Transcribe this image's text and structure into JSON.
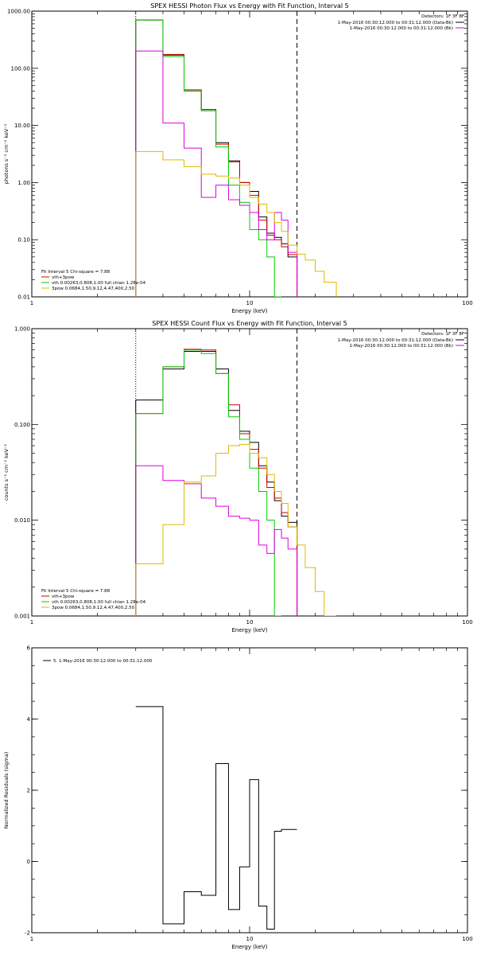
{
  "chart_data": [
    {
      "type": "line",
      "title": "SPEX HESSI Photon Flux vs Energy with Fit Function, Interval 5",
      "xlabel": "Energy (keV)",
      "ylabel": "photons s⁻¹ cm⁻² keV⁻¹",
      "xlog": true,
      "ylog": true,
      "xlim": [
        1,
        100
      ],
      "ylim": [
        0.01,
        1000
      ],
      "xticks": [
        {
          "v": 1,
          "label": "1"
        },
        {
          "v": 10,
          "label": "10"
        },
        {
          "v": 100,
          "label": "100"
        }
      ],
      "yticks": [
        {
          "v": 0.01,
          "label": "0.01"
        },
        {
          "v": 0.1,
          "label": "0.10"
        },
        {
          "v": 1,
          "label": "1.00"
        },
        {
          "v": 10,
          "label": "10.00"
        },
        {
          "v": 100,
          "label": "100.00"
        },
        {
          "v": 1000,
          "label": "1000.00"
        }
      ],
      "vlines": [
        {
          "x": 3.0,
          "style": "dotted",
          "color": "#000000"
        },
        {
          "x": 16.5,
          "style": "dashed",
          "color": "#000000"
        }
      ],
      "edges": [
        3.0,
        4.0,
        5.0,
        6.0,
        7.0,
        8.0,
        9.0,
        10.0,
        11.0,
        12.0,
        13.0,
        14.0,
        15.0,
        16.5,
        18.0,
        20.0,
        22.0,
        25.0
      ],
      "series": [
        {
          "color": "#000000",
          "values": [
            700,
            170,
            40,
            19,
            5.0,
            2.4,
            1.0,
            0.7,
            0.25,
            0.13,
            0.11,
            0.085,
            0.05,
            null,
            null,
            null,
            null
          ]
        },
        {
          "color": "#cc0000",
          "values": [
            700,
            175,
            42,
            19,
            4.7,
            2.3,
            1.0,
            0.6,
            0.22,
            0.12,
            0.1,
            0.075,
            0.055,
            null,
            null,
            null,
            null
          ]
        },
        {
          "color": "#00cc00",
          "values": [
            700,
            160,
            40,
            18,
            4.2,
            0.9,
            0.45,
            0.15,
            0.1,
            0.05,
            0.01,
            null,
            null,
            null,
            null,
            null,
            null
          ]
        },
        {
          "color": "#dd00dd",
          "values": [
            200,
            11,
            4.0,
            0.55,
            0.9,
            0.5,
            0.4,
            0.3,
            0.15,
            0.1,
            0.3,
            0.22,
            0.06,
            null,
            null,
            null,
            null
          ]
        },
        {
          "color": "#ddbb00",
          "values": [
            3.5,
            2.5,
            1.9,
            1.4,
            1.3,
            1.2,
            0.9,
            0.55,
            0.42,
            0.3,
            0.2,
            0.14,
            0.08,
            0.056,
            0.044,
            0.028,
            0.018
          ]
        }
      ],
      "header": {
        "detectors": "Detectors: 1F 3F 8F",
        "lines": [
          {
            "text": "1-May-2016 00:30:12.000 to 00:31:12.000 (Data-Bk)",
            "color": "#000000"
          },
          {
            "text": "1-May-2016 00:30:12.000 to 00:31:12.000 (Bk)",
            "color": "#dd00dd"
          }
        ]
      },
      "legend": {
        "title": "Fit Interval 5   Chi-square = 7.88",
        "items": [
          {
            "text": "vth+3pow",
            "color": "#cc0000"
          },
          {
            "text": "vth 0.00263,0.808,1.00  full chian 1.28e-04",
            "color": "#00cc00"
          },
          {
            "text": "3pow 0.0684,1.50,9.12,4.47,400,2.50",
            "color": "#ddbb00"
          }
        ]
      }
    },
    {
      "type": "line",
      "title": "SPEX HESSI Count Flux vs Energy with Fit Function, Interval 5",
      "xlabel": "Energy (keV)",
      "ylabel": "counts s⁻¹ cm⁻² keV⁻¹",
      "xlog": true,
      "ylog": true,
      "xlim": [
        1,
        100
      ],
      "ylim": [
        0.001,
        1
      ],
      "xticks": [
        {
          "v": 1,
          "label": "1"
        },
        {
          "v": 10,
          "label": "10"
        },
        {
          "v": 100,
          "label": "100"
        }
      ],
      "yticks": [
        {
          "v": 0.001,
          "label": "0.001"
        },
        {
          "v": 0.01,
          "label": "0.010"
        },
        {
          "v": 0.1,
          "label": "0.100"
        },
        {
          "v": 1,
          "label": "1.000"
        }
      ],
      "vlines": [
        {
          "x": 3.0,
          "style": "dotted",
          "color": "#000000"
        },
        {
          "x": 16.5,
          "style": "dashed",
          "color": "#000000"
        }
      ],
      "edges": [
        3.0,
        4.0,
        5.0,
        6.0,
        7.0,
        8.0,
        9.0,
        10.0,
        11.0,
        12.0,
        13.0,
        14.0,
        15.0,
        16.5,
        18.0,
        20.0,
        22.0,
        25.0
      ],
      "series": [
        {
          "color": "#000000",
          "values": [
            0.18,
            0.38,
            0.58,
            0.58,
            0.38,
            0.14,
            0.085,
            0.065,
            0.037,
            0.025,
            0.016,
            0.011,
            0.0095,
            null,
            null,
            null,
            null
          ]
        },
        {
          "color": "#cc0000",
          "values": [
            0.13,
            0.4,
            0.61,
            0.6,
            0.34,
            0.16,
            0.08,
            0.055,
            0.035,
            0.022,
            0.017,
            0.012,
            0.0085,
            null,
            null,
            null,
            null
          ]
        },
        {
          "color": "#00cc00",
          "values": [
            0.13,
            0.4,
            0.6,
            0.55,
            0.34,
            0.12,
            0.07,
            0.035,
            0.02,
            0.01,
            0.001,
            null,
            null,
            null,
            null,
            null,
            null
          ]
        },
        {
          "color": "#dd00dd",
          "values": [
            0.037,
            0.026,
            0.024,
            0.017,
            0.014,
            0.011,
            0.0105,
            0.01,
            0.0055,
            0.0045,
            0.008,
            0.0065,
            0.005,
            null,
            null,
            null,
            null
          ]
        },
        {
          "color": "#ddbb00",
          "values": [
            0.0035,
            0.009,
            0.025,
            0.029,
            0.05,
            0.06,
            0.062,
            0.05,
            0.045,
            0.03,
            0.02,
            0.015,
            0.0085,
            0.0055,
            0.0032,
            0.0018,
            0.001
          ]
        }
      ],
      "header": {
        "detectors": "Detectors: 1F 3F 8F",
        "lines": [
          {
            "text": "1-May-2016 00:30:12.000 to 00:31:12.000 (Data-Bk)",
            "color": "#000000"
          },
          {
            "text": "1-May-2016 00:30:12.000 to 00:31:12.000 (Bk)",
            "color": "#dd00dd"
          }
        ]
      },
      "legend": {
        "title": "Fit Interval 5   Chi-square = 7.88",
        "items": [
          {
            "text": "vth+3pow",
            "color": "#cc0000"
          },
          {
            "text": "vth 0.00263,0.808,1.00  full chian 1.28e-04",
            "color": "#00cc00"
          },
          {
            "text": "3pow 0.0684,1.50,9.12,4.47,400,2.50",
            "color": "#ddbb00"
          }
        ]
      }
    },
    {
      "type": "line",
      "title": "",
      "xlabel": "Energy (keV)",
      "ylabel": "Normalized Residuals (sigma)",
      "xlog": true,
      "ylog": false,
      "xlim": [
        1,
        100
      ],
      "ylim": [
        -2,
        6
      ],
      "xticks": [
        {
          "v": 1,
          "label": "1"
        },
        {
          "v": 10,
          "label": "10"
        },
        {
          "v": 100,
          "label": "100"
        }
      ],
      "yticks": [
        {
          "v": -2,
          "label": "-2"
        },
        {
          "v": 0,
          "label": "0"
        },
        {
          "v": 2,
          "label": "2"
        },
        {
          "v": 4,
          "label": "4"
        },
        {
          "v": 6,
          "label": "6"
        }
      ],
      "vlines": [],
      "edges": [
        3.0,
        4.0,
        5.0,
        6.0,
        7.0,
        8.0,
        9.0,
        10.0,
        11.0,
        12.0,
        13.0,
        14.0,
        15.0,
        16.5
      ],
      "series": [
        {
          "color": "#000000",
          "values": [
            4.35,
            -1.75,
            -0.85,
            -0.95,
            2.75,
            -1.35,
            -0.15,
            2.3,
            -1.25,
            -1.9,
            0.85,
            0.9,
            0.9
          ]
        }
      ],
      "header": {
        "detectors": "",
        "lines": []
      },
      "legend": {
        "title": "",
        "items": [
          {
            "text": "5.  1-May-2016 00:30:12.000 to 00:31:12.000",
            "color": "#000000"
          }
        ]
      }
    }
  ]
}
